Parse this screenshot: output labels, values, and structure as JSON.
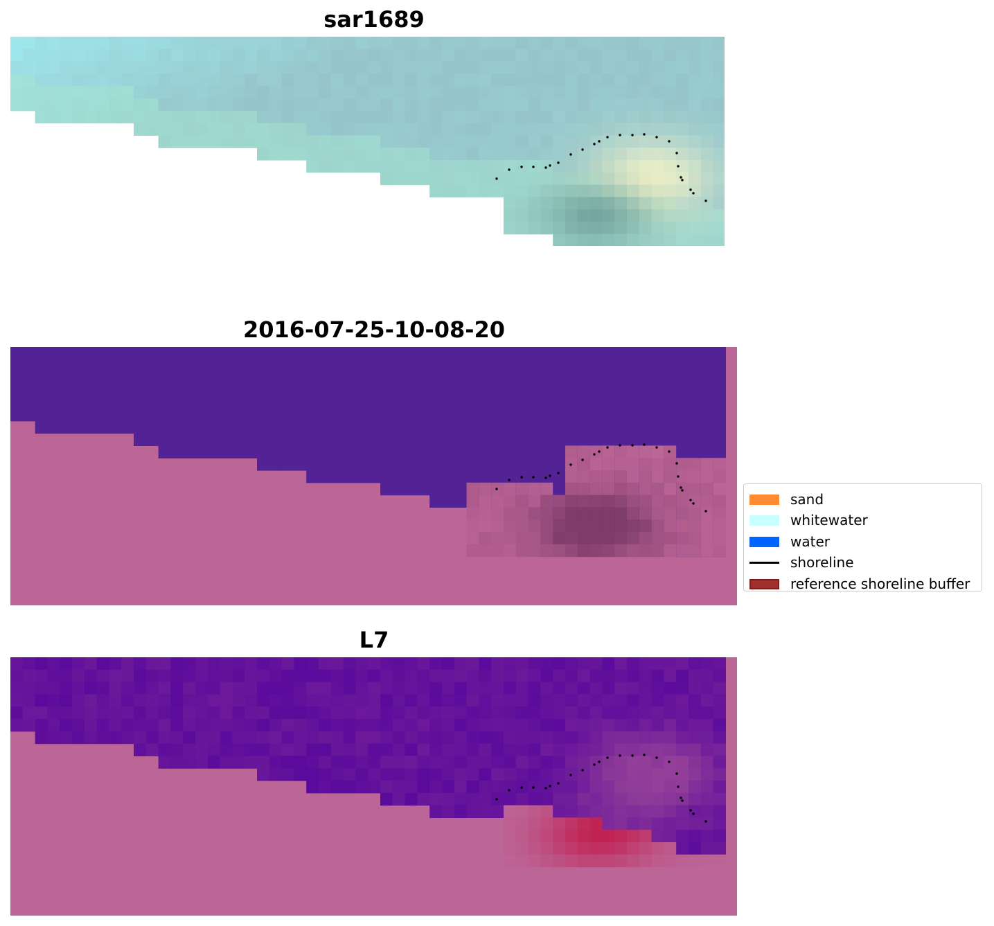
{
  "panels": [
    {
      "id": "rgb",
      "title": "sar1689"
    },
    {
      "id": "classified",
      "title": "2016-07-25-10-08-20"
    },
    {
      "id": "index",
      "title": "L7"
    }
  ],
  "legend": {
    "items": [
      {
        "label": "sand",
        "kind": "patch",
        "color": "#ff8c33"
      },
      {
        "label": "whitewater",
        "kind": "patch",
        "color": "#c8ffff"
      },
      {
        "label": "water",
        "kind": "patch",
        "color": "#0064ff"
      },
      {
        "label": "shoreline",
        "kind": "line",
        "color": "#000000"
      },
      {
        "label": "reference shoreline buffer",
        "kind": "patch",
        "color": "#a0302e",
        "edge": "#7a1f1f"
      }
    ]
  },
  "colors": {
    "land_buffer": "#bc6597",
    "classified_water": "#532396",
    "classified_sand_dark": "#7e3c6b",
    "index_water": "#6c1a9a",
    "index_high": "#c3002f",
    "rgb_water": "#96c4c8",
    "rgb_bright": "#fbf6c8",
    "rgb_dark": "#6a9e98"
  }
}
